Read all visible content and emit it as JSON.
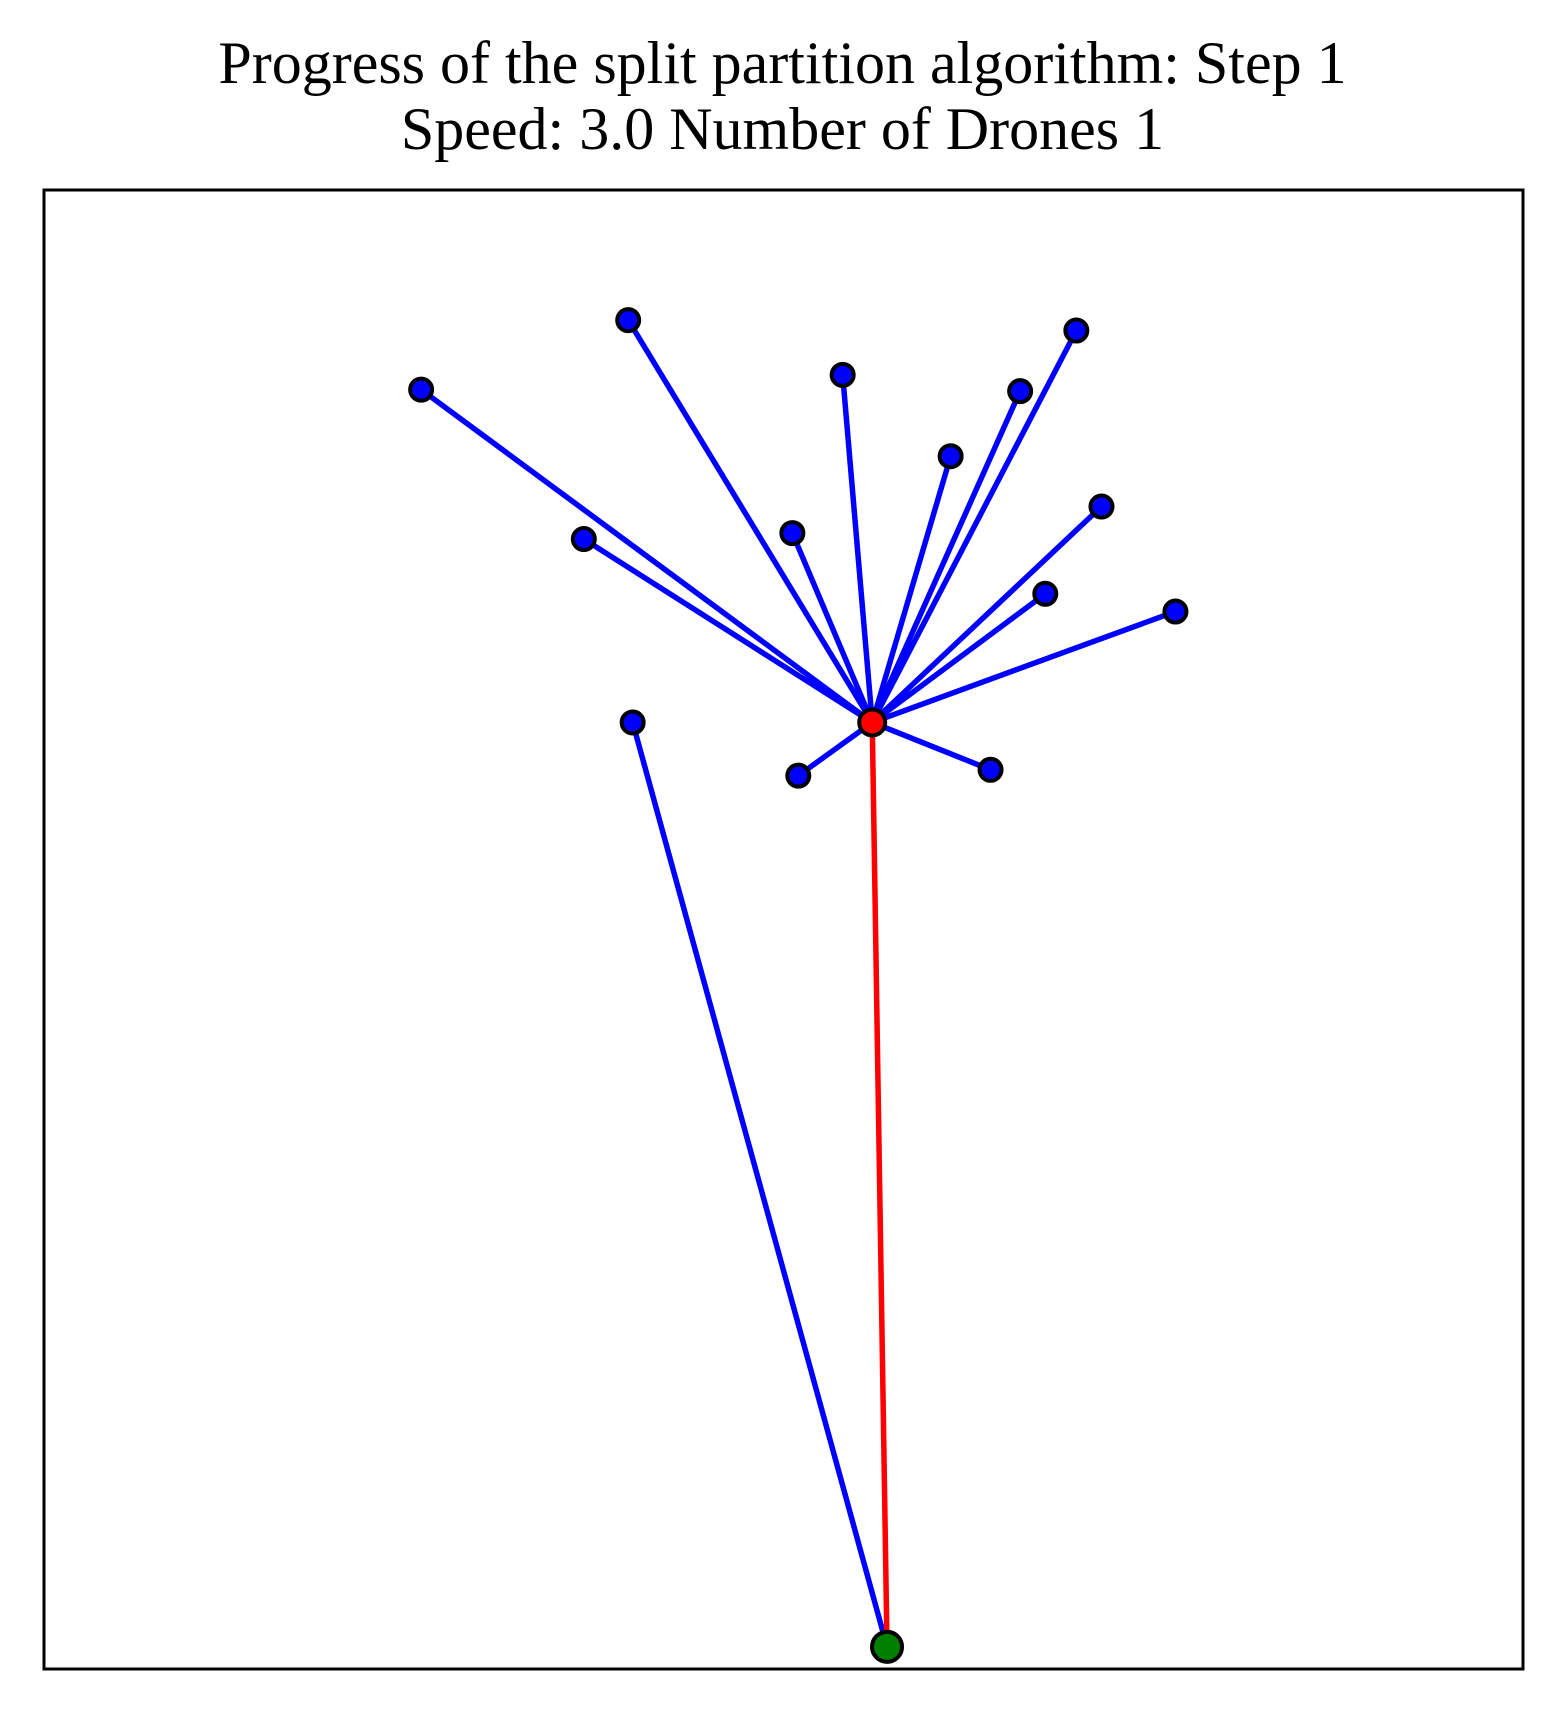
{
  "chart_data": {
    "type": "scatter",
    "title": "Progress of the split partition algorithm: Step 1",
    "subtitle": "Speed: 3.0 Number of Drones 1",
    "xlabel": "",
    "ylabel": "",
    "axes_ticks": "none",
    "grid": false,
    "hub": {
      "x": 0.56,
      "y": 0.64
    },
    "depot": {
      "x": 0.57,
      "y": 0.015
    },
    "points": [
      {
        "x": 0.255,
        "y": 0.865
      },
      {
        "x": 0.395,
        "y": 0.912
      },
      {
        "x": 0.54,
        "y": 0.875
      },
      {
        "x": 0.66,
        "y": 0.864
      },
      {
        "x": 0.698,
        "y": 0.905
      },
      {
        "x": 0.613,
        "y": 0.82
      },
      {
        "x": 0.365,
        "y": 0.764
      },
      {
        "x": 0.506,
        "y": 0.768
      },
      {
        "x": 0.715,
        "y": 0.786
      },
      {
        "x": 0.677,
        "y": 0.727
      },
      {
        "x": 0.765,
        "y": 0.715
      },
      {
        "x": 0.398,
        "y": 0.64
      },
      {
        "x": 0.51,
        "y": 0.604
      },
      {
        "x": 0.64,
        "y": 0.608
      }
    ],
    "edges": [
      {
        "from": 0,
        "to": "hub",
        "color": "#0000ff"
      },
      {
        "from": 1,
        "to": "hub",
        "color": "#0000ff"
      },
      {
        "from": 2,
        "to": "hub",
        "color": "#0000ff"
      },
      {
        "from": 3,
        "to": "hub",
        "color": "#0000ff"
      },
      {
        "from": 4,
        "to": "hub",
        "color": "#0000ff"
      },
      {
        "from": 5,
        "to": "hub",
        "color": "#0000ff"
      },
      {
        "from": 6,
        "to": "hub",
        "color": "#0000ff"
      },
      {
        "from": 7,
        "to": "hub",
        "color": "#0000ff"
      },
      {
        "from": 8,
        "to": "hub",
        "color": "#0000ff"
      },
      {
        "from": 9,
        "to": "hub",
        "color": "#0000ff"
      },
      {
        "from": 10,
        "to": "hub",
        "color": "#0000ff"
      },
      {
        "from": 11,
        "to": "depot",
        "color": "#0000ff"
      },
      {
        "from": 12,
        "to": "hub",
        "color": "#0000ff"
      },
      {
        "from": 13,
        "to": "hub",
        "color": "#0000ff"
      },
      {
        "from": "hub",
        "to": "depot",
        "color": "#ff0000"
      }
    ],
    "colors": {
      "point_fill": "#0000ff",
      "hub_fill": "#ff0000",
      "depot_fill": "#008000",
      "marker_edge": "#000000",
      "frame": "#000000"
    }
  }
}
